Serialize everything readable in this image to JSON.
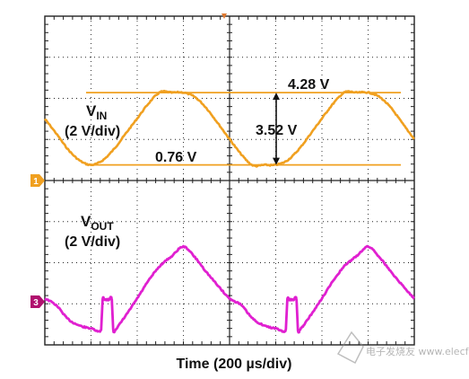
{
  "chart_data": {
    "type": "line",
    "xlabel": "Time (200 µs/div)",
    "divisions": {
      "x": 8,
      "y": 8,
      "minor_per_div": 5
    },
    "grid": true,
    "colors": {
      "ch1": "#f0a020",
      "ch3": "#e020d0",
      "grid": "#222222",
      "marker3": "#b0106e"
    },
    "channels": [
      {
        "id": "ch1",
        "marker": "1",
        "name_main": "V",
        "name_sub": "IN",
        "scale": "(2 V/div)",
        "volts_per_div": 2,
        "ground_division": 4.0,
        "x_div": [
          0,
          0.25,
          0.5,
          0.75,
          1,
          1.25,
          1.5,
          1.75,
          2,
          2.25,
          2.5,
          2.75,
          3,
          3.25,
          3.5,
          3.75,
          4,
          4.25,
          4.5,
          4.75,
          5,
          5.25,
          5.5,
          5.75,
          6,
          6.25,
          6.5,
          6.75,
          7,
          7.25,
          7.5,
          7.75,
          8
        ],
        "y_volts": [
          3.0,
          2.28,
          1.52,
          0.98,
          0.76,
          0.98,
          1.54,
          2.28,
          3.02,
          3.76,
          4.3,
          4.28,
          4.28,
          4.06,
          3.52,
          2.78,
          2.02,
          1.28,
          0.74,
          0.76,
          0.76,
          0.98,
          1.52,
          2.26,
          3.02,
          3.76,
          4.3,
          4.28,
          4.28,
          4.06,
          3.52,
          2.76,
          2.02
        ]
      },
      {
        "id": "ch3",
        "marker": "3",
        "name_main": "V",
        "name_sub": "OUT",
        "scale": "(2 V/div)",
        "volts_per_div": 2,
        "ground_division": 0.0,
        "x_div": [
          0,
          0.25,
          0.5,
          0.75,
          1,
          1.22,
          1.25,
          1.3,
          1.38,
          1.45,
          1.48,
          1.55,
          1.75,
          2,
          2.25,
          2.5,
          2.75,
          3,
          3.25,
          3.5,
          3.75,
          4,
          4.25,
          4.5,
          4.75,
          5,
          5.22,
          5.25,
          5.3,
          5.38,
          5.45,
          5.48,
          5.55,
          5.75,
          6,
          6.25,
          6.5,
          6.75,
          7,
          7.25,
          7.5,
          7.75,
          8
        ],
        "y_volts": [
          2.26,
          1.92,
          1.26,
          0.94,
          0.8,
          0.74,
          2.2,
          2.2,
          2.2,
          2.2,
          0.74,
          0.8,
          1.42,
          2.26,
          3.14,
          3.86,
          4.32,
          4.78,
          4.26,
          3.54,
          2.88,
          2.26,
          1.94,
          1.28,
          0.94,
          0.8,
          0.74,
          2.2,
          2.2,
          2.2,
          2.2,
          0.74,
          0.8,
          1.42,
          2.26,
          3.14,
          3.86,
          4.32,
          4.78,
          4.26,
          3.54,
          2.88,
          2.26
        ]
      }
    ],
    "annotations": [
      {
        "text": "4.28 V",
        "value": 4.28,
        "channel": "ch1",
        "type": "cursor"
      },
      {
        "text": "0.76 V",
        "value": 0.76,
        "channel": "ch1",
        "type": "cursor"
      },
      {
        "text": "3.52 V",
        "value": 3.52,
        "channel": "ch1",
        "type": "amplitude"
      }
    ],
    "watermark": "电子发烧友 www.elecfans.com"
  }
}
